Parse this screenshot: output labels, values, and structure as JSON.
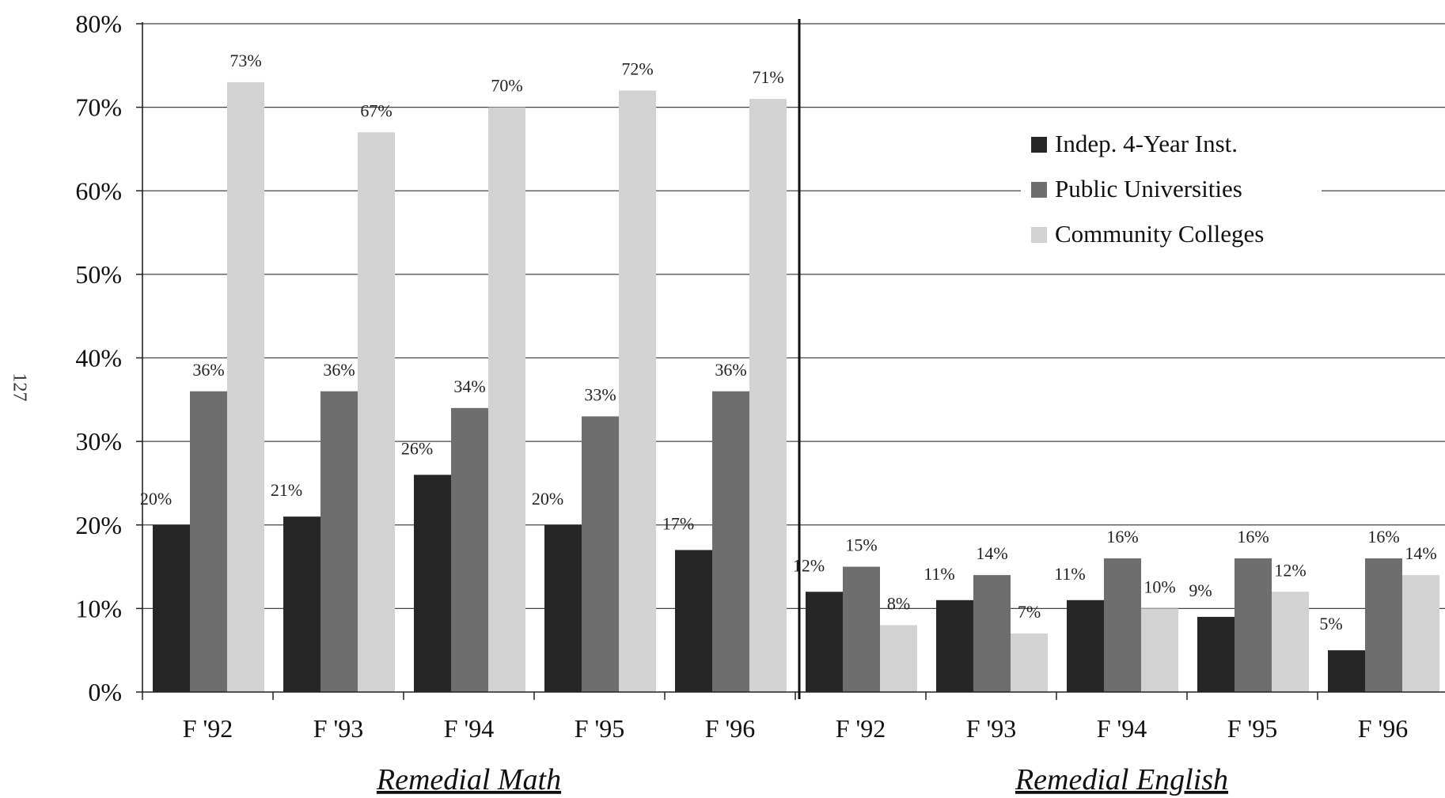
{
  "page_number": "127",
  "colors": {
    "indep": "#262626",
    "public": "#6e6e6e",
    "community": "#d2d2d2",
    "grid": "#444444",
    "axis": "#222222"
  },
  "chart_data": {
    "type": "bar",
    "title": "",
    "ylabel": "",
    "ylim": [
      0,
      80
    ],
    "yticks": [
      "0%",
      "10%",
      "20%",
      "30%",
      "40%",
      "50%",
      "60%",
      "70%",
      "80%"
    ],
    "grid": true,
    "legend_position": "top-right",
    "groups": [
      {
        "label": "Remedial Math",
        "categories": [
          "F '92",
          "F '93",
          "F '94",
          "F '95",
          "F '96"
        ],
        "series": [
          {
            "name": "Indep. 4-Year Inst.",
            "values": [
              20,
              21,
              26,
              20,
              17
            ],
            "labels": [
              "20%",
              "21%",
              "26%",
              "20%",
              "17%"
            ]
          },
          {
            "name": "Public Universities",
            "values": [
              36,
              36,
              34,
              33,
              36
            ],
            "labels": [
              "36%",
              "36%",
              "34%",
              "33%",
              "36%"
            ]
          },
          {
            "name": "Community Colleges",
            "values": [
              73,
              67,
              70,
              72,
              71
            ],
            "labels": [
              "73%",
              "67%",
              "70%",
              "72%",
              "71%"
            ]
          }
        ]
      },
      {
        "label": "Remedial English",
        "categories": [
          "F '92",
          "F '93",
          "F '94",
          "F '95",
          "F '96"
        ],
        "series": [
          {
            "name": "Indep. 4-Year Inst.",
            "values": [
              12,
              11,
              11,
              9,
              5
            ],
            "labels": [
              "12%",
              "11%",
              "11%",
              "9%",
              "5%"
            ]
          },
          {
            "name": "Public Universities",
            "values": [
              15,
              14,
              16,
              16,
              16
            ],
            "labels": [
              "15%",
              "14%",
              "16%",
              "16%",
              "16%"
            ]
          },
          {
            "name": "Community Colleges",
            "values": [
              8,
              7,
              10,
              12,
              14
            ],
            "labels": [
              "8%",
              "7%",
              "10%",
              "12%",
              "14%"
            ]
          }
        ]
      }
    ],
    "legend": [
      "Indep. 4-Year Inst.",
      "Public Universities",
      "Community Colleges"
    ]
  }
}
